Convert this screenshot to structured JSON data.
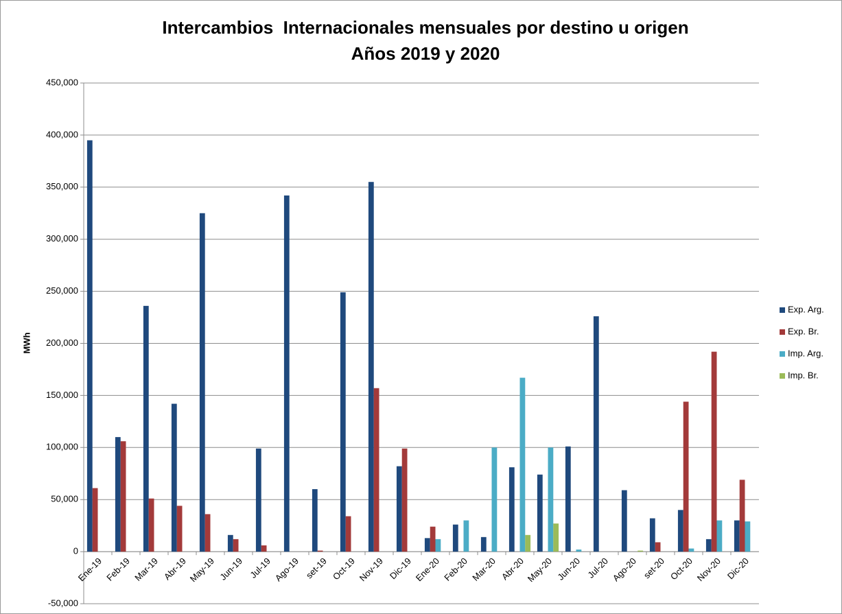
{
  "chart_data": {
    "type": "bar",
    "title": "Intercambios  Internacionales mensuales por destino u origen",
    "subtitle": "Años 2019 y 2020",
    "y_label": "MWh",
    "categories": [
      "Ene-19",
      "Feb-19",
      "Mar-19",
      "Abr-19",
      "May-19",
      "Jun-19",
      "Jul-19",
      "Ago-19",
      "set-19",
      "Oct-19",
      "Nov-19",
      "Dic-19",
      "Ene-20",
      "Feb-20",
      "Mar-20",
      "Abr-20",
      "May-20",
      "Jun-20",
      "Jul-20",
      "Ago-20",
      "set-20",
      "Oct-20",
      "Nov-20",
      "Dic-20"
    ],
    "series": [
      {
        "name": "Exp. Arg.",
        "color": "#1f497d",
        "values": [
          395000,
          110000,
          236000,
          142000,
          325000,
          16000,
          99000,
          342000,
          60000,
          249000,
          355000,
          82000,
          13000,
          26000,
          14000,
          81000,
          74000,
          101000,
          226000,
          59000,
          32000,
          40000,
          12000,
          30000
        ]
      },
      {
        "name": "Exp. Br.",
        "color": "#a33a3a",
        "values": [
          61000,
          106000,
          51000,
          44000,
          36000,
          12000,
          6000,
          0,
          1000,
          34000,
          157000,
          99000,
          24000,
          0,
          0,
          0,
          0,
          0,
          0,
          0,
          9000,
          144000,
          192000,
          69000
        ]
      },
      {
        "name": "Imp. Arg.",
        "color": "#4bacc6",
        "values": [
          0,
          0,
          0,
          0,
          0,
          0,
          0,
          0,
          0,
          0,
          0,
          0,
          12000,
          30000,
          100000,
          167000,
          100000,
          2000,
          0,
          0,
          0,
          3000,
          30000,
          29000
        ]
      },
      {
        "name": "Imp. Br.",
        "color": "#9bbb59",
        "values": [
          0,
          0,
          0,
          0,
          0,
          0,
          0,
          0,
          0,
          0,
          0,
          0,
          0,
          0,
          0,
          16000,
          27000,
          0,
          0,
          1000,
          0,
          0,
          0,
          0
        ]
      }
    ],
    "ylim": [
      -50000,
      450000
    ],
    "yticks": [
      {
        "value": -50000,
        "label": "-50,000"
      },
      0,
      {
        "value": 50000,
        "label": "50,000"
      },
      {
        "value": 100000,
        "label": "100,000"
      },
      {
        "value": 150000,
        "label": "150,000"
      },
      {
        "value": 200000,
        "label": "200,000"
      },
      {
        "value": 250000,
        "label": "250,000"
      },
      {
        "value": 300000,
        "label": "300,000"
      },
      {
        "value": 350000,
        "label": "350,000"
      },
      {
        "value": 400000,
        "label": "400,000"
      },
      {
        "value": 450000,
        "label": "450,000"
      }
    ],
    "grid": true,
    "legend": "right"
  }
}
